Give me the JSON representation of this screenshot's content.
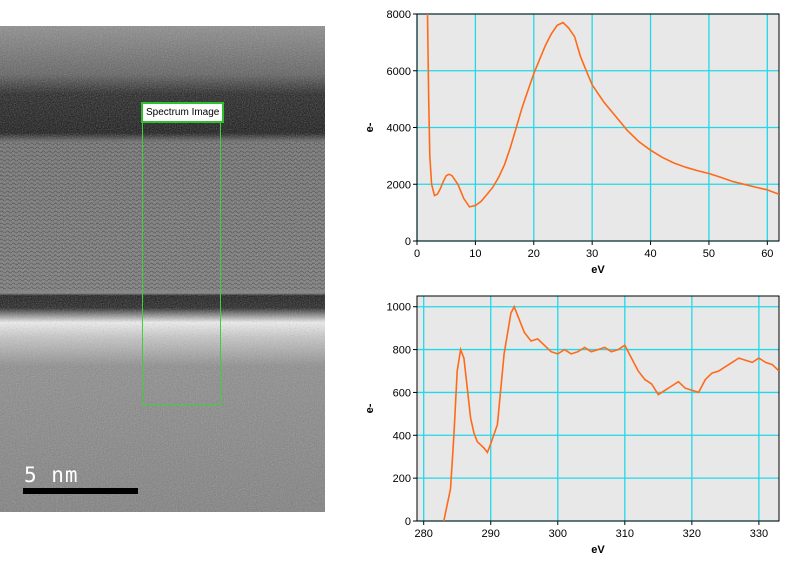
{
  "image_panel": {
    "roi_label": "Spectrum Image",
    "scale_label": "5 nm"
  },
  "colors": {
    "series": "#ff6a1a",
    "grid": "#22d8e8",
    "plot_bg": "#e8e8e8",
    "roi": "#39d239"
  },
  "chart_data": [
    {
      "type": "line",
      "title": "",
      "xlabel": "eV",
      "ylabel": "e-",
      "xlim": [
        0,
        62
      ],
      "ylim": [
        0,
        8000
      ],
      "xticks": [
        0,
        10,
        20,
        30,
        40,
        50,
        60
      ],
      "yticks": [
        0,
        2000,
        4000,
        6000,
        8000
      ],
      "grid": true,
      "series": [
        {
          "x": [
            1.8,
            2.0,
            2.2,
            2.5,
            3.0,
            3.5,
            4.0,
            4.5,
            5.0,
            5.5,
            6.0,
            7.0,
            8.0,
            9.0,
            10.0,
            11.0,
            12.0,
            13.0,
            14.0,
            15.0,
            16.0,
            17.0,
            18.0,
            19.0,
            20.0,
            21.0,
            22.0,
            23.0,
            24.0,
            25.0,
            26.0,
            27.0,
            28.0,
            29.0,
            30.0,
            32.0,
            34.0,
            36.0,
            38.0,
            40.0,
            42.0,
            44.0,
            46.0,
            48.0,
            50.0,
            52.0,
            54.0,
            56.0,
            58.0,
            60.0,
            62.0
          ],
          "y": [
            8000,
            5000,
            3000,
            2000,
            1600,
            1650,
            1850,
            2100,
            2300,
            2350,
            2300,
            2000,
            1500,
            1200,
            1250,
            1400,
            1650,
            1900,
            2250,
            2700,
            3300,
            4000,
            4700,
            5300,
            5900,
            6400,
            6900,
            7300,
            7600,
            7700,
            7500,
            7200,
            6500,
            6000,
            5500,
            4900,
            4400,
            3900,
            3500,
            3200,
            2950,
            2750,
            2600,
            2480,
            2380,
            2250,
            2100,
            2000,
            1900,
            1800,
            1650
          ]
        }
      ]
    },
    {
      "type": "line",
      "title": "",
      "xlabel": "eV",
      "ylabel": "e-",
      "xlim": [
        279,
        333
      ],
      "ylim": [
        0,
        1050
      ],
      "xticks": [
        280,
        290,
        300,
        310,
        320,
        330
      ],
      "yticks": [
        0,
        200,
        400,
        600,
        800,
        1000
      ],
      "grid": true,
      "series": [
        {
          "x": [
            283,
            284,
            284.5,
            285,
            285.5,
            286,
            286.5,
            287,
            287.5,
            288,
            289,
            289.5,
            290,
            291,
            292,
            293,
            293.5,
            294,
            295,
            296,
            297,
            298,
            299,
            300,
            301,
            302,
            303,
            304,
            305,
            306,
            307,
            308,
            309,
            310,
            311,
            312,
            313,
            314,
            315,
            316,
            317,
            318,
            319,
            320,
            321,
            322,
            323,
            324,
            325,
            326,
            327,
            328,
            329,
            330,
            331,
            332,
            333
          ],
          "y": [
            0,
            150,
            400,
            700,
            800,
            760,
            620,
            480,
            410,
            370,
            340,
            320,
            360,
            450,
            780,
            970,
            1000,
            960,
            880,
            840,
            850,
            820,
            790,
            780,
            800,
            780,
            790,
            810,
            790,
            800,
            810,
            790,
            800,
            820,
            760,
            700,
            660,
            640,
            590,
            610,
            630,
            650,
            620,
            610,
            600,
            660,
            690,
            700,
            720,
            740,
            760,
            750,
            740,
            760,
            740,
            730,
            700
          ]
        }
      ]
    }
  ]
}
